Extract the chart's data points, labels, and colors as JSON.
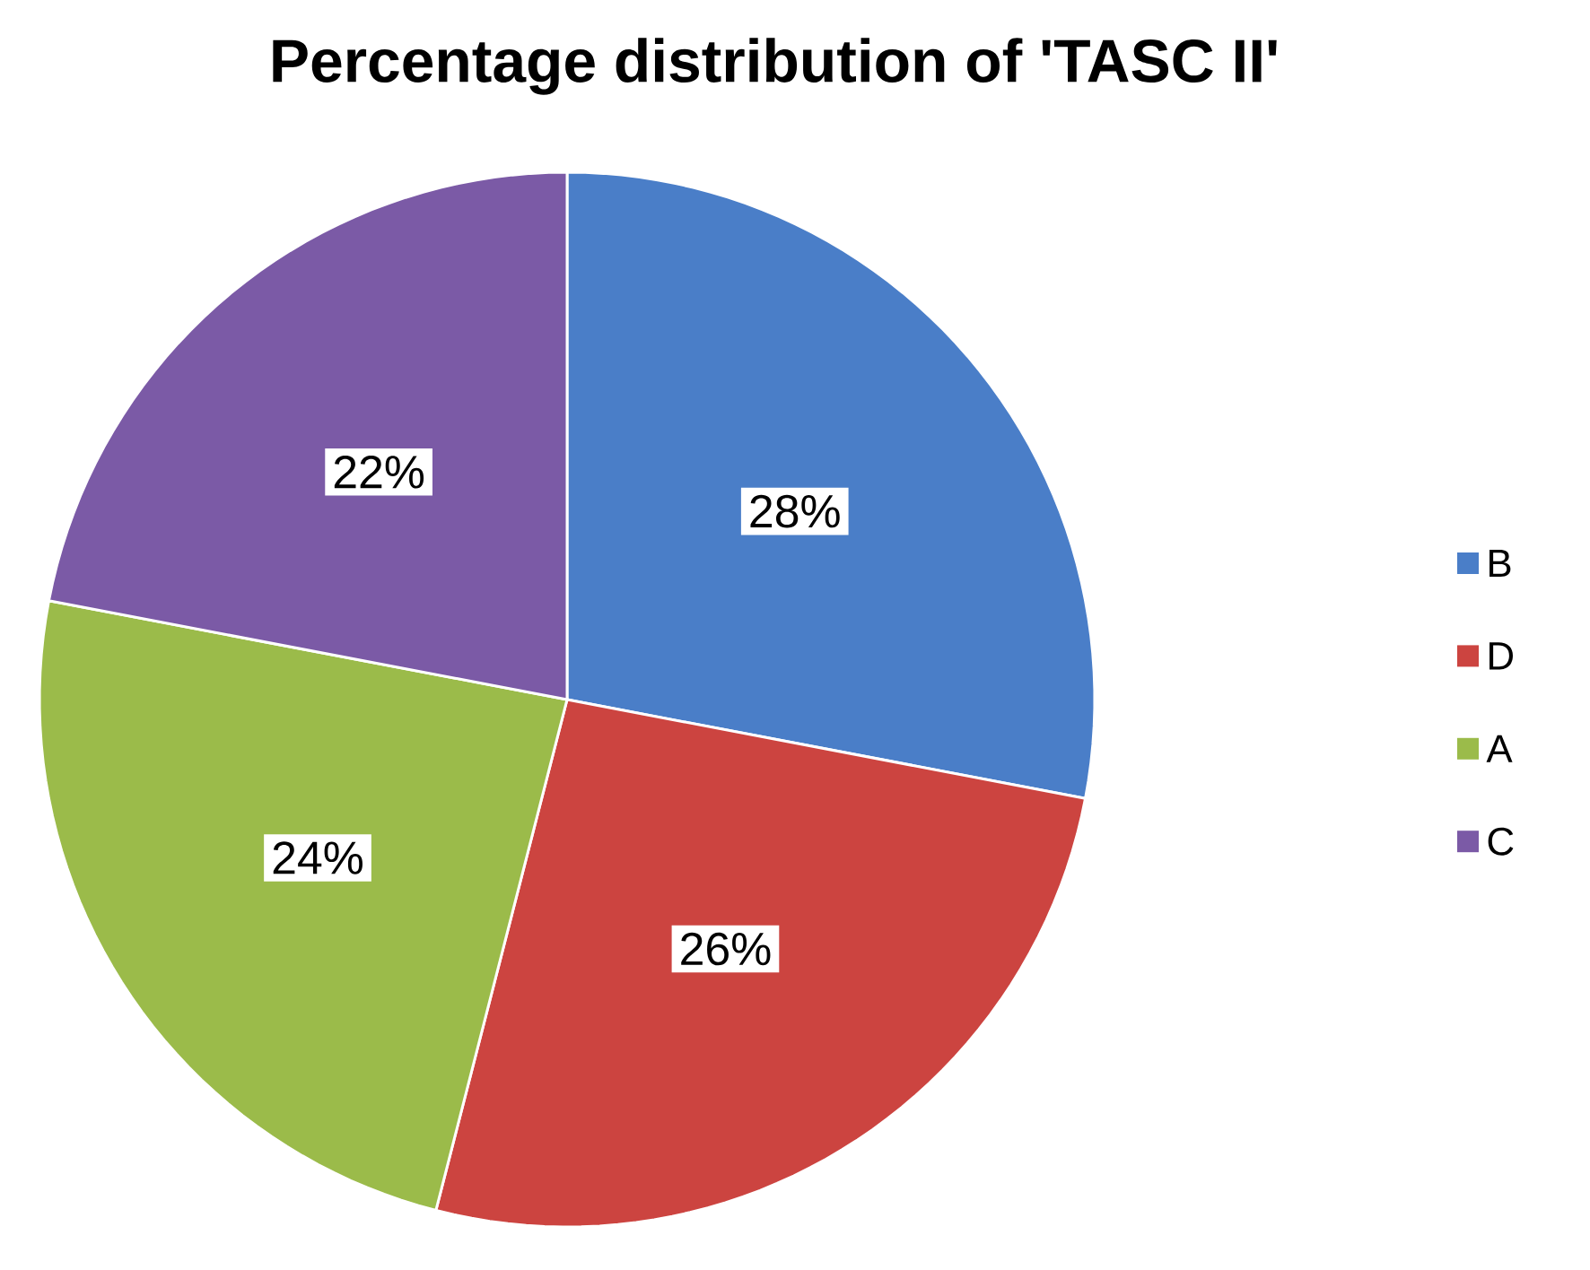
{
  "chart_data": {
    "type": "pie",
    "title": "Percentage distribution of 'TASC II'",
    "categories": [
      "B",
      "D",
      "A",
      "C"
    ],
    "values": [
      28,
      26,
      24,
      22
    ],
    "colors": [
      "#4a7ec8",
      "#cc4440",
      "#9bbb4a",
      "#7b5aa6"
    ],
    "value_labels": [
      "28%",
      "26%",
      "24%",
      "22%"
    ],
    "legend": "right"
  }
}
